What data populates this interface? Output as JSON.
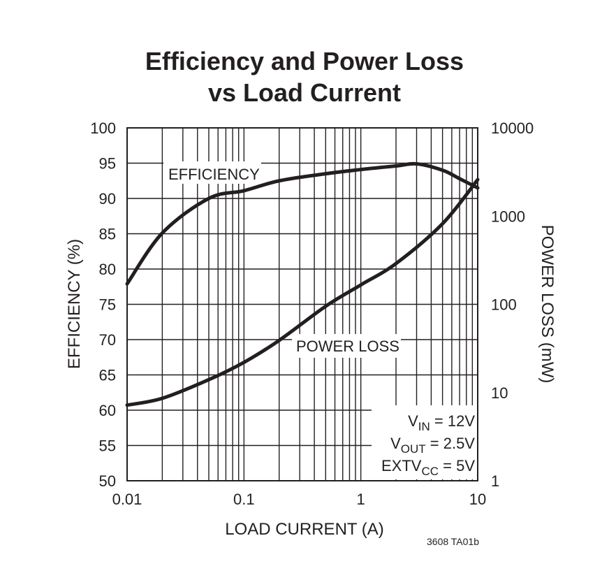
{
  "chart_data": {
    "type": "line",
    "title_line1": "Efficiency and Power Loss",
    "title_line2": "vs Load Current",
    "xlabel": "LOAD CURRENT (A)",
    "ylabel": "EFFICIENCY (%)",
    "y2label": "POWER LOSS (mW)",
    "xscale": "log",
    "xlim": [
      0.01,
      10
    ],
    "ylim": [
      50,
      100
    ],
    "y2scale": "log",
    "y2lim": [
      1,
      10000
    ],
    "grid": true,
    "xticks": [
      "0.01",
      "0.1",
      "1",
      "10"
    ],
    "yticks": [
      "50",
      "55",
      "60",
      "65",
      "70",
      "75",
      "80",
      "85",
      "90",
      "95",
      "100"
    ],
    "y2ticks": [
      "1",
      "10",
      "100",
      "1000",
      "10000"
    ],
    "series": [
      {
        "name": "EFFICIENCY",
        "axis": "left",
        "x": [
          0.01,
          0.02,
          0.05,
          0.1,
          0.2,
          0.5,
          1,
          2,
          3,
          5,
          7,
          10
        ],
        "y": [
          77.9,
          85.1,
          90.0,
          91.1,
          92.5,
          93.5,
          94.1,
          94.6,
          94.9,
          94.0,
          92.8,
          91.5
        ]
      },
      {
        "name": "POWER LOSS",
        "axis": "right",
        "x": [
          0.01,
          0.02,
          0.05,
          0.1,
          0.2,
          0.5,
          1,
          2,
          5,
          10
        ],
        "y": [
          7.2,
          8.6,
          14,
          22,
          39,
          95,
          166,
          290,
          820,
          2590
        ]
      }
    ],
    "annotations": {
      "vin": {
        "main": "V",
        "sub": "IN",
        "rest": " = 12V"
      },
      "vout": {
        "main": "V",
        "sub": "OUT",
        "rest": " = 2.5V"
      },
      "extvcc": {
        "main": "EXTV",
        "sub": "CC",
        "rest": " = 5V"
      }
    },
    "figure_id": "3608 TA01b",
    "line_color": "#231f20"
  }
}
